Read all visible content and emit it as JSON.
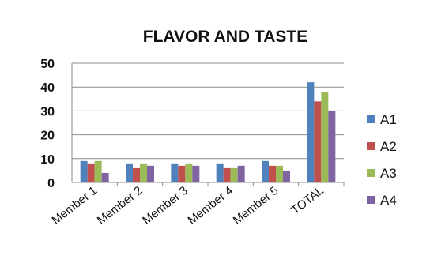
{
  "chart_data": {
    "type": "bar",
    "title": "FLAVOR AND TASTE",
    "xlabel": "",
    "ylabel": "",
    "categories": [
      "Member 1",
      "Member 2",
      "Member 3",
      "Member 4",
      "Member 5",
      "TOTAL"
    ],
    "ylim": [
      0,
      50
    ],
    "yticks": [
      "0",
      "10",
      "20",
      "30",
      "40",
      "50"
    ],
    "grid": true,
    "legend_position": "right",
    "series": [
      {
        "name": "A1",
        "color": "#4F81BD",
        "values": [
          9,
          8,
          8,
          8,
          9,
          42
        ]
      },
      {
        "name": "A2",
        "color": "#C0504D",
        "values": [
          8,
          6,
          7,
          6,
          7,
          34
        ]
      },
      {
        "name": "A3",
        "color": "#9BBB59",
        "values": [
          9,
          8,
          8,
          6,
          7,
          38
        ]
      },
      {
        "name": "A4",
        "color": "#8064A2",
        "values": [
          4,
          7,
          7,
          7,
          5,
          30
        ]
      }
    ]
  }
}
